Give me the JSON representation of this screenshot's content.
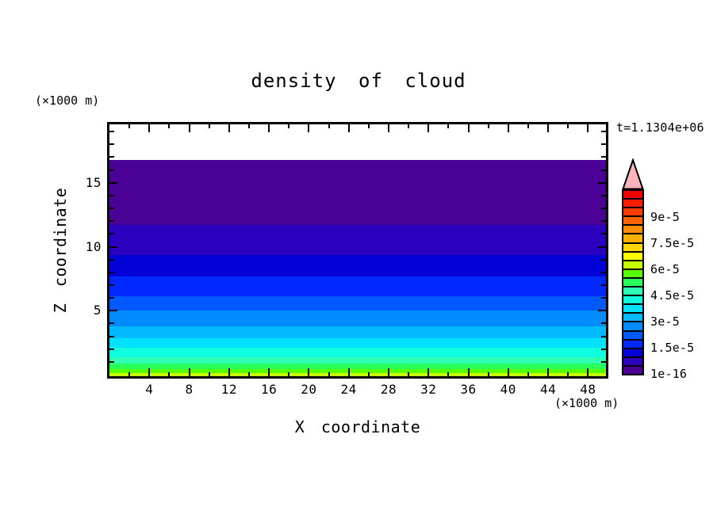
{
  "title": "density of cloud",
  "annotations": {
    "time": "t=1.1304e+06",
    "z_axis_unit": "(×1000 m)",
    "x_axis_unit": "(×1000 m)"
  },
  "axes": {
    "x": {
      "title": "X coordinate",
      "unit": "(×1000 m)",
      "range": [
        0,
        49.8
      ],
      "major_ticks": [
        4,
        8,
        12,
        16,
        20,
        24,
        28,
        32,
        36,
        40,
        44,
        48
      ],
      "minor_step": 2
    },
    "z": {
      "title": "Z coordinate",
      "unit": "(×1000 m)",
      "range": [
        0,
        19.6
      ],
      "major_ticks": [
        5,
        10,
        15
      ],
      "minor_step": 1
    }
  },
  "chart_data": {
    "type": "heatmap",
    "subtype": "filled-contour-horizontal-bands",
    "title": "density of cloud",
    "xlabel": "X coordinate (×1000 m)",
    "ylabel": "Z coordinate (×1000 m)",
    "time_annotation": "t=1.1304e+06",
    "xlim": [
      0,
      49.8
    ],
    "ylim": [
      0,
      19.6
    ],
    "grid": false,
    "description": "Cloud density is horizontally uniform; it decreases with height from ~6.5e-5 at ground to below 1e-16 above z=16.8 (cloud top, white region above).",
    "bands": [
      {
        "level_min": 1e-16,
        "level_max": 5e-06,
        "z_top": 16.8,
        "color": "#4B0096"
      },
      {
        "level_min": 5e-06,
        "level_max": 1e-05,
        "z_top": 11.7,
        "color": "#2B00BE"
      },
      {
        "level_min": 1e-05,
        "level_max": 1.5e-05,
        "z_top": 9.35,
        "color": "#0000D7"
      },
      {
        "level_min": 1.5e-05,
        "level_max": 2e-05,
        "z_top": 7.7,
        "color": "#0028FF"
      },
      {
        "level_min": 2e-05,
        "level_max": 2.5e-05,
        "z_top": 6.1,
        "color": "#005AFF"
      },
      {
        "level_min": 2.5e-05,
        "level_max": 3e-05,
        "z_top": 5.0,
        "color": "#008CFF"
      },
      {
        "level_min": 3e-05,
        "level_max": 3.5e-05,
        "z_top": 3.8,
        "color": "#00B9FF"
      },
      {
        "level_min": 3.5e-05,
        "level_max": 4e-05,
        "z_top": 2.85,
        "color": "#00E1FF"
      },
      {
        "level_min": 4e-05,
        "level_max": 4.5e-05,
        "z_top": 2.1,
        "color": "#0FFFE1"
      },
      {
        "level_min": 4.5e-05,
        "level_max": 5e-05,
        "z_top": 1.36,
        "color": "#2DFFB4"
      },
      {
        "level_min": 5e-05,
        "level_max": 5.5e-05,
        "z_top": 0.87,
        "color": "#28FF5A"
      },
      {
        "level_min": 5.5e-05,
        "level_max": 6e-05,
        "z_top": 0.43,
        "color": "#55FF00"
      },
      {
        "level_min": 6e-05,
        "level_max": 6.5e-05,
        "z_top": 0.12,
        "color": "#C3FF00"
      }
    ],
    "colorbar": {
      "min_level": 1e-16,
      "level_step": 5e-06,
      "cells_bottom_to_top": [
        "#4B0096",
        "#2B00BE",
        "#0000D7",
        "#0028FF",
        "#005AFF",
        "#008CFF",
        "#00B9FF",
        "#00E1FF",
        "#0FFFE1",
        "#2DFFB4",
        "#28FF5A",
        "#55FF00",
        "#C3FF00",
        "#FFFF00",
        "#FFD700",
        "#FFAF00",
        "#FF8C00",
        "#FF6400",
        "#FF3C00",
        "#FF1E00",
        "#F00000"
      ],
      "overflow_arrow_color": "#FFB4BE",
      "labels": [
        {
          "text": "1e-16",
          "boundary_index": 0
        },
        {
          "text": "1.5e-5",
          "boundary_index": 3
        },
        {
          "text": "3e-5",
          "boundary_index": 6
        },
        {
          "text": "4.5e-5",
          "boundary_index": 9
        },
        {
          "text": "6e-5",
          "boundary_index": 12
        },
        {
          "text": "7.5e-5",
          "boundary_index": 15
        },
        {
          "text": "9e-5",
          "boundary_index": 18
        }
      ]
    }
  }
}
